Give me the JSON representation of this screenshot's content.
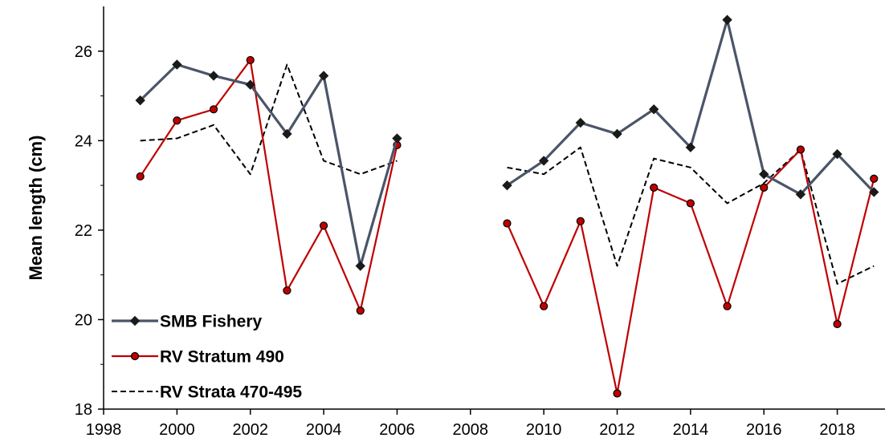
{
  "chart_data": {
    "type": "line",
    "title": "",
    "xlabel": "",
    "ylabel": "Mean length (cm)",
    "xlim": [
      1998,
      2019.3
    ],
    "ylim": [
      18,
      27
    ],
    "xticks": [
      1998,
      2000,
      2002,
      2004,
      2006,
      2008,
      2010,
      2012,
      2014,
      2016,
      2018
    ],
    "yticks": [
      18,
      20,
      22,
      24,
      26
    ],
    "grid": false,
    "legend_position": "bottom-left",
    "series": [
      {
        "name": "SMB Fishery",
        "color": "#4a5568",
        "marker": "diamond",
        "line_style": "solid",
        "segments": [
          {
            "x": [
              1999,
              2000,
              2001,
              2002,
              2003,
              2004,
              2005,
              2006
            ],
            "y": [
              24.9,
              25.7,
              25.45,
              25.25,
              24.15,
              25.45,
              21.2,
              24.05
            ]
          },
          {
            "x": [
              2009,
              2010,
              2011,
              2012,
              2013,
              2014,
              2015,
              2016,
              2017,
              2018,
              2019
            ],
            "y": [
              23.0,
              23.55,
              24.4,
              24.15,
              24.7,
              23.85,
              26.7,
              23.25,
              22.8,
              23.7,
              22.85
            ]
          }
        ]
      },
      {
        "name": "RV Stratum 490",
        "color": "#c00000",
        "marker": "circle",
        "line_style": "solid",
        "segments": [
          {
            "x": [
              1999,
              2000,
              2001,
              2002,
              2003,
              2004,
              2005,
              2006
            ],
            "y": [
              23.2,
              24.45,
              24.7,
              25.8,
              20.65,
              22.1,
              20.2,
              23.9
            ]
          },
          {
            "x": [
              2009,
              2010,
              2011,
              2012,
              2013,
              2014,
              2015,
              2016,
              2017,
              2018,
              2019
            ],
            "y": [
              22.15,
              20.3,
              22.2,
              18.35,
              22.95,
              22.6,
              20.3,
              22.95,
              23.8,
              19.9,
              23.15
            ]
          }
        ]
      },
      {
        "name": "RV Strata 470-495",
        "color": "#000000",
        "marker": "none",
        "line_style": "dashed",
        "segments": [
          {
            "x": [
              1999,
              2000,
              2001,
              2002,
              2003,
              2004,
              2005,
              2006
            ],
            "y": [
              24.0,
              24.05,
              24.35,
              23.25,
              25.7,
              23.55,
              23.25,
              23.55
            ]
          },
          {
            "x": [
              2009,
              2010,
              2011,
              2012,
              2013,
              2014,
              2015,
              2016,
              2017,
              2018,
              2019
            ],
            "y": [
              23.4,
              23.25,
              23.85,
              21.2,
              23.6,
              23.4,
              22.6,
              23.05,
              23.8,
              20.8,
              21.2
            ]
          }
        ]
      }
    ]
  }
}
